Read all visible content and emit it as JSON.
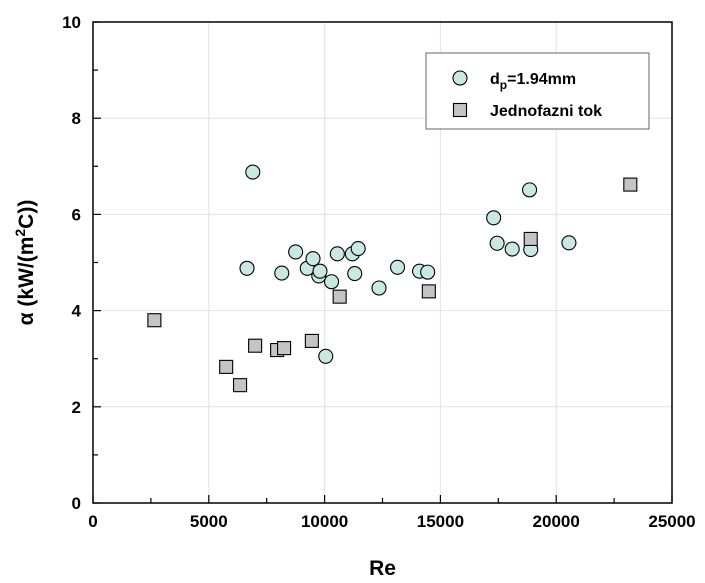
{
  "chart_data": {
    "type": "scatter",
    "xlabel": "Re",
    "ylabel": "α (kW/(m²C))",
    "xlim": [
      0,
      25000
    ],
    "ylim": [
      0,
      10
    ],
    "x_ticks": [
      "0",
      "5000",
      "10000",
      "15000",
      "20000",
      "25000"
    ],
    "y_ticks": [
      "0",
      "2",
      "4",
      "6",
      "8",
      "10"
    ],
    "grid": true,
    "legend_position": "top-right",
    "series": [
      {
        "name": "dp=1.94mm",
        "marker": "circle",
        "color": "#c9e8e1",
        "points": [
          {
            "x": 6900,
            "y": 6.88
          },
          {
            "x": 6650,
            "y": 4.88
          },
          {
            "x": 8150,
            "y": 4.78
          },
          {
            "x": 8750,
            "y": 5.22
          },
          {
            "x": 9250,
            "y": 4.88
          },
          {
            "x": 9500,
            "y": 5.08
          },
          {
            "x": 9750,
            "y": 4.72
          },
          {
            "x": 9800,
            "y": 4.82
          },
          {
            "x": 10300,
            "y": 4.6
          },
          {
            "x": 10550,
            "y": 5.18
          },
          {
            "x": 11200,
            "y": 5.18
          },
          {
            "x": 11300,
            "y": 4.77
          },
          {
            "x": 11450,
            "y": 5.29
          },
          {
            "x": 10050,
            "y": 3.05
          },
          {
            "x": 12350,
            "y": 4.47
          },
          {
            "x": 13150,
            "y": 4.9
          },
          {
            "x": 14100,
            "y": 4.82
          },
          {
            "x": 14450,
            "y": 4.8
          },
          {
            "x": 17300,
            "y": 5.93
          },
          {
            "x": 17450,
            "y": 5.4
          },
          {
            "x": 18100,
            "y": 5.28
          },
          {
            "x": 18850,
            "y": 6.51
          },
          {
            "x": 18900,
            "y": 5.27
          },
          {
            "x": 20550,
            "y": 5.41
          }
        ]
      },
      {
        "name": "Jednofazni tok",
        "marker": "square",
        "color": "#c4c4c4",
        "points": [
          {
            "x": 2650,
            "y": 3.8
          },
          {
            "x": 5750,
            "y": 2.83
          },
          {
            "x": 6350,
            "y": 2.45
          },
          {
            "x": 7000,
            "y": 3.27
          },
          {
            "x": 7950,
            "y": 3.18
          },
          {
            "x": 8250,
            "y": 3.22
          },
          {
            "x": 9450,
            "y": 3.37
          },
          {
            "x": 10650,
            "y": 4.29
          },
          {
            "x": 14500,
            "y": 4.4
          },
          {
            "x": 18900,
            "y": 5.49
          },
          {
            "x": 23200,
            "y": 6.62
          }
        ]
      }
    ]
  }
}
